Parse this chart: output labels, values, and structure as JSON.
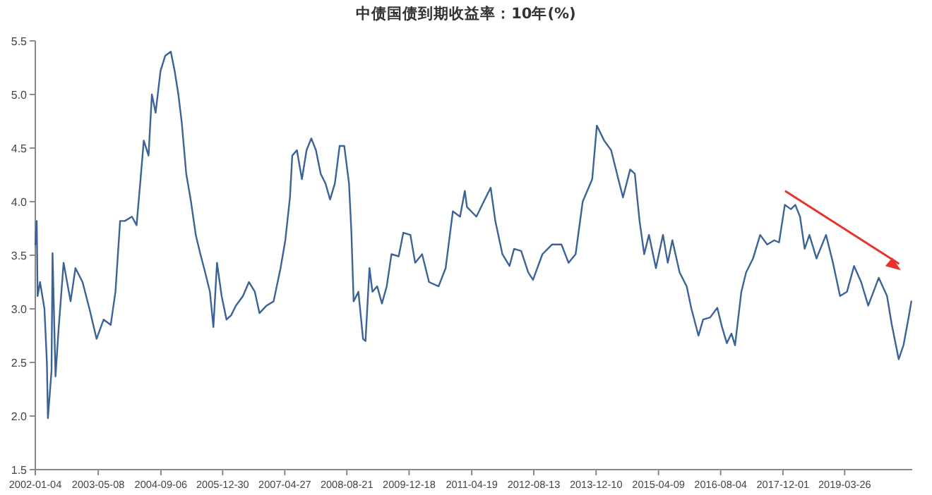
{
  "chart_data": {
    "type": "line",
    "title": "中债国债到期收益率：10年(%)",
    "x": [
      "2002-01-04",
      "2002-01-15",
      "2002-01-22",
      "2002-02-10",
      "2002-03-16",
      "2002-04-04",
      "2002-04-12",
      "2002-05-10",
      "2002-05-18",
      "2002-06-10",
      "2002-07-04",
      "2002-08-12",
      "2002-10-05",
      "2002-11-12",
      "2003-01-06",
      "2003-03-01",
      "2003-04-25",
      "2003-06-19",
      "2003-08-13",
      "2003-09-19",
      "2003-10-25",
      "2003-12-01",
      "2004-01-25",
      "2004-03-01",
      "2004-04-01",
      "2004-04-26",
      "2004-06-02",
      "2004-06-28",
      "2004-07-27",
      "2004-09-03",
      "2004-10-09",
      "2004-11-22",
      "2004-12-22",
      "2005-01-20",
      "2005-02-15",
      "2005-03-22",
      "2005-04-28",
      "2005-06-04",
      "2005-07-10",
      "2005-08-16",
      "2005-09-22",
      "2005-10-19",
      "2005-11-16",
      "2005-12-22",
      "2006-01-29",
      "2006-03-06",
      "2006-04-12",
      "2006-06-06",
      "2006-07-22",
      "2006-09-06",
      "2006-10-12",
      "2006-12-06",
      "2007-01-30",
      "2007-03-25",
      "2007-05-01",
      "2007-06-06",
      "2007-06-24",
      "2007-07-30",
      "2007-09-07",
      "2007-10-13",
      "2007-11-19",
      "2007-12-25",
      "2008-01-31",
      "2008-03-08",
      "2008-04-13",
      "2008-05-20",
      "2008-06-26",
      "2008-08-01",
      "2008-09-07",
      "2008-09-25",
      "2008-10-13",
      "2008-11-19",
      "2008-12-25",
      "2009-01-13",
      "2009-02-13",
      "2009-03-08",
      "2009-04-14",
      "2009-05-21",
      "2009-06-27",
      "2009-08-03",
      "2009-09-28",
      "2009-11-03",
      "2009-12-28",
      "2010-02-03",
      "2010-03-29",
      "2010-05-22",
      "2010-08-04",
      "2010-09-28",
      "2010-11-23",
      "2011-01-18",
      "2011-02-24",
      "2011-03-13",
      "2011-05-25",
      "2011-08-06",
      "2011-09-13",
      "2011-10-19",
      "2011-12-13",
      "2012-02-06",
      "2012-03-13",
      "2012-05-07",
      "2012-07-01",
      "2012-08-07",
      "2012-10-19",
      "2013-01-01",
      "2013-03-16",
      "2013-05-10",
      "2013-07-04",
      "2013-08-28",
      "2013-11-10",
      "2013-12-16",
      "2014-02-11",
      "2014-04-06",
      "2014-06-01",
      "2014-07-07",
      "2014-09-01",
      "2014-10-07",
      "2014-11-13",
      "2014-12-19",
      "2015-01-25",
      "2015-03-20",
      "2015-05-14",
      "2015-06-20",
      "2015-07-26",
      "2015-09-20",
      "2015-11-14",
      "2015-12-21",
      "2016-02-14",
      "2016-03-21",
      "2016-05-15",
      "2016-07-09",
      "2016-08-15",
      "2016-09-21",
      "2016-10-27",
      "2016-11-24",
      "2017-01-12",
      "2017-02-18",
      "2017-04-13",
      "2017-06-07",
      "2017-08-01",
      "2017-09-25",
      "2017-11-01",
      "2017-12-16",
      "2018-02-01",
      "2018-03-07",
      "2018-04-13",
      "2018-05-19",
      "2018-06-25",
      "2018-08-19",
      "2018-11-01",
      "2018-12-25",
      "2019-02-18",
      "2019-04-13",
      "2019-06-07",
      "2019-08-01",
      "2019-09-25",
      "2019-12-16",
      "2020-02-18",
      "2020-03-25",
      "2020-05-19",
      "2020-06-25",
      "2020-08-01",
      "2020-08-25"
    ],
    "series": [
      {
        "color": "#3b6397",
        "values": [
          3.6,
          3.82,
          3.12,
          3.25,
          3.0,
          2.5,
          1.98,
          2.42,
          3.52,
          2.37,
          2.81,
          3.43,
          3.07,
          3.38,
          3.25,
          3.0,
          2.72,
          2.9,
          2.85,
          3.16,
          3.82,
          3.82,
          3.86,
          3.78,
          4.21,
          4.57,
          4.43,
          5.0,
          4.83,
          5.22,
          5.36,
          5.4,
          5.22,
          5.0,
          4.74,
          4.26,
          4.0,
          3.69,
          3.51,
          3.34,
          3.16,
          2.83,
          3.43,
          3.12,
          2.9,
          2.94,
          3.03,
          3.12,
          3.25,
          3.16,
          2.96,
          3.03,
          3.07,
          3.38,
          3.64,
          4.04,
          4.43,
          4.48,
          4.21,
          4.48,
          4.59,
          4.48,
          4.26,
          4.17,
          4.02,
          4.17,
          4.52,
          4.52,
          4.17,
          3.73,
          3.07,
          3.16,
          2.72,
          2.7,
          3.38,
          3.16,
          3.21,
          3.05,
          3.21,
          3.51,
          3.49,
          3.71,
          3.69,
          3.43,
          3.51,
          3.25,
          3.21,
          3.38,
          3.91,
          3.86,
          4.1,
          3.95,
          3.86,
          4.04,
          4.13,
          3.82,
          3.51,
          3.4,
          3.56,
          3.54,
          3.34,
          3.27,
          3.51,
          3.6,
          3.6,
          3.43,
          3.51,
          4.0,
          4.21,
          4.71,
          4.57,
          4.48,
          4.21,
          4.04,
          4.3,
          4.26,
          3.82,
          3.51,
          3.69,
          3.38,
          3.69,
          3.43,
          3.64,
          3.34,
          3.21,
          3.0,
          2.75,
          2.9,
          2.92,
          3.01,
          2.83,
          2.68,
          2.77,
          2.66,
          3.16,
          3.34,
          3.47,
          3.69,
          3.6,
          3.64,
          3.62,
          3.97,
          3.93,
          3.97,
          3.86,
          3.56,
          3.69,
          3.47,
          3.69,
          3.43,
          3.12,
          3.16,
          3.4,
          3.25,
          3.03,
          3.29,
          3.12,
          2.86,
          2.53,
          2.66,
          2.9,
          3.07
        ]
      }
    ],
    "xlim": [
      "2002-01-04",
      "2020-09-01"
    ],
    "xticks": [
      "2002-01-04",
      "2003-05-08",
      "2004-09-06",
      "2005-12-30",
      "2007-04-27",
      "2008-08-21",
      "2009-12-18",
      "2011-04-19",
      "2012-08-13",
      "2013-12-10",
      "2015-04-09",
      "2016-08-04",
      "2017-12-01",
      "2019-03-26"
    ],
    "ylim": [
      1.5,
      5.5
    ],
    "yticks": [
      1.5,
      {
        "value": 2,
        "label": "2.0"
      },
      2.5,
      {
        "value": 3,
        "label": "3.0"
      },
      3.5,
      {
        "value": 4,
        "label": "4.0"
      },
      4.5,
      {
        "value": 5,
        "label": "5.0"
      },
      5.5
    ],
    "grid": false,
    "marker": "none",
    "line_style": "solid"
  }
}
